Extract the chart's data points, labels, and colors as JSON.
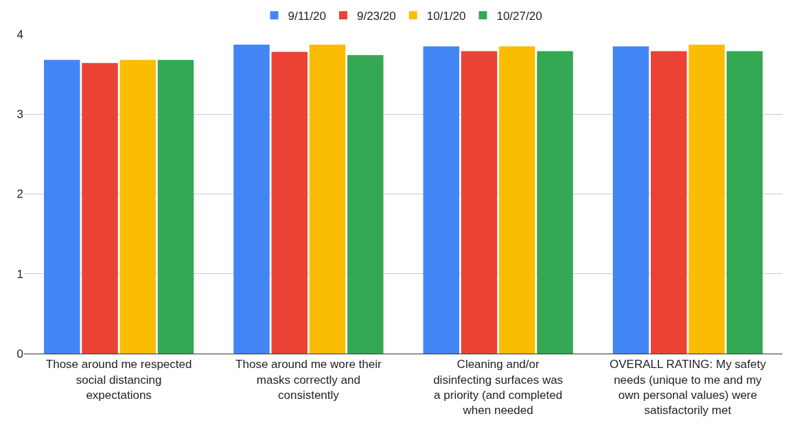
{
  "chart_data": {
    "type": "bar",
    "categories": [
      "Those around me respected social distancing expectations",
      "Those around me wore their masks correctly and consistently",
      "Cleaning and/or disinfecting surfaces was a priority (and completed when needed",
      "OVERALL RATING: My safety needs (unique to me and my own personal values) were satisfactorily met"
    ],
    "series": [
      {
        "name": "9/11/20",
        "color": "#4285f4",
        "values": [
          3.68,
          3.87,
          3.85,
          3.85
        ]
      },
      {
        "name": "9/23/20",
        "color": "#ea4335",
        "values": [
          3.64,
          3.78,
          3.79,
          3.79
        ]
      },
      {
        "name": "10/1/20",
        "color": "#fbbc04",
        "values": [
          3.68,
          3.87,
          3.85,
          3.87
        ]
      },
      {
        "name": "10/27/20",
        "color": "#34a853",
        "values": [
          3.68,
          3.74,
          3.79,
          3.79
        ]
      }
    ],
    "ylim": [
      0,
      4
    ],
    "yticks": [
      0,
      1,
      2,
      3,
      4
    ],
    "grid": "y",
    "legend": "top"
  }
}
